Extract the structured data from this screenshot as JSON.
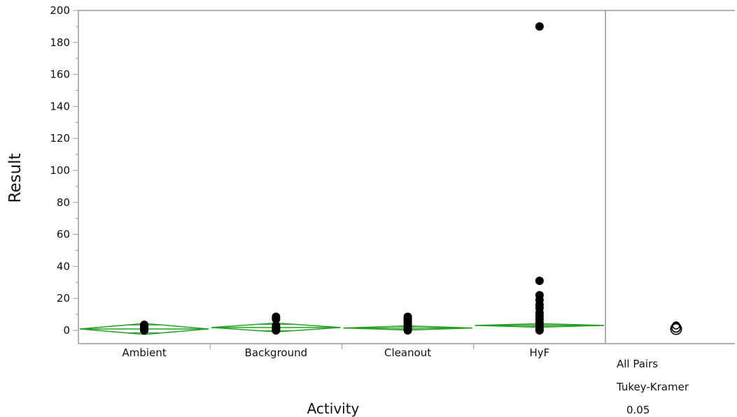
{
  "chart_data": {
    "type": "scatter",
    "subtype": "oneway means diamonds with Tukey-Kramer comparison circles",
    "xlabel": "Activity",
    "ylabel": "Result",
    "ylim": [
      0,
      200
    ],
    "yticks": [
      0,
      20,
      40,
      60,
      80,
      100,
      120,
      140,
      160,
      180,
      200
    ],
    "categories": [
      "Ambient",
      "Background",
      "Cleanout",
      "HyF"
    ],
    "points": [
      [
        0,
        0.5,
        1,
        1.5,
        2,
        2.5,
        3,
        3.5
      ],
      [
        0,
        0.5,
        1,
        1.5,
        2,
        3,
        7,
        8.5
      ],
      [
        0,
        0.5,
        1,
        1.5,
        2,
        3,
        4,
        5,
        6,
        7,
        8,
        8.5
      ],
      [
        0,
        1,
        2,
        3,
        4,
        5,
        7,
        9,
        11,
        14,
        16,
        19,
        22,
        31,
        190
      ]
    ],
    "diamonds": [
      {
        "category": "Ambient",
        "mean": 0.9,
        "lower": -2.5,
        "upper": 4.3
      },
      {
        "category": "Background",
        "mean": 1.8,
        "lower": -0.9,
        "upper": 4.6
      },
      {
        "category": "Cleanout",
        "mean": 1.5,
        "lower": 0.2,
        "upper": 2.8
      },
      {
        "category": "HyF",
        "mean": 3.1,
        "lower": 2.0,
        "upper": 4.2
      }
    ],
    "comparison": {
      "method_lines": [
        "All Pairs",
        "Tukey-Kramer",
        "0.05"
      ],
      "circles": [
        {
          "center": 0.9,
          "radius": 3.4
        },
        {
          "center": 1.8,
          "radius": 2.9
        },
        {
          "center": 1.5,
          "radius": 2.6
        },
        {
          "center": 3.1,
          "radius": 2.2
        }
      ]
    },
    "colors": {
      "points": "#000000",
      "diamond": "#22a022",
      "axis": "#999999"
    }
  }
}
